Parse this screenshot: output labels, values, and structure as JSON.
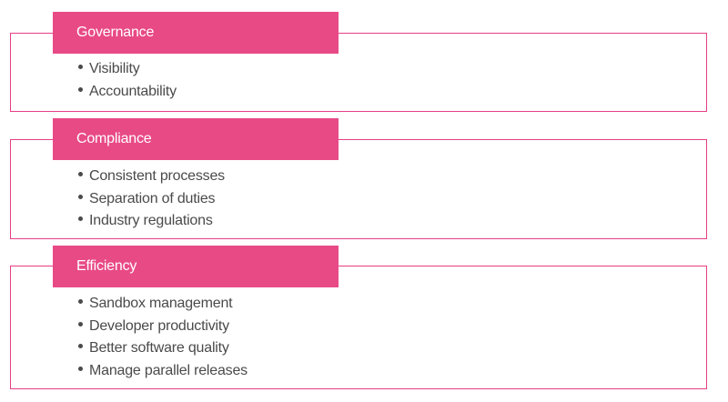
{
  "sections": [
    {
      "title": "Governance",
      "items": [
        "Visibility",
        "Accountability"
      ]
    },
    {
      "title": "Compliance",
      "items": [
        "Consistent processes",
        "Separation of duties",
        "Industry regulations"
      ]
    },
    {
      "title": "Efficiency",
      "items": [
        "Sandbox management",
        "Developer productivity",
        "Better software quality",
        "Manage parallel releases"
      ]
    }
  ],
  "colors": {
    "accent": "#e84a86",
    "border": "#e63e84",
    "text": "#4a4a4a"
  },
  "icons": {
    "bullet": "bullet-dot-icon"
  }
}
